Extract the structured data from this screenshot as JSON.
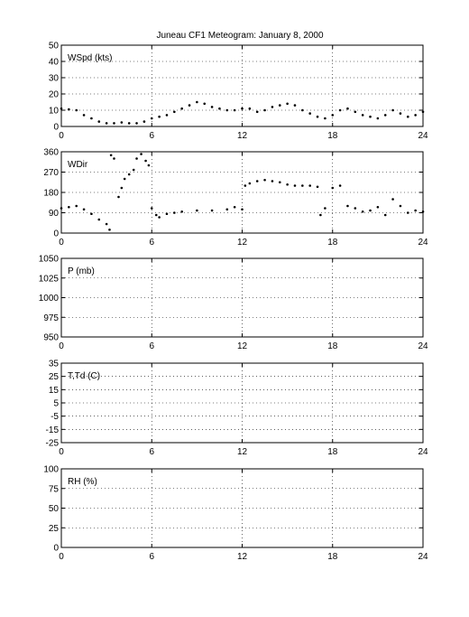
{
  "title": "Juneau  CF1 Meteogram:    January  8, 2000",
  "chart_data": [
    {
      "type": "scatter",
      "label": "WSpd (kts)",
      "xlim": [
        0,
        24
      ],
      "ylim": [
        0,
        50
      ],
      "xticks": [
        0,
        6,
        12,
        18,
        24
      ],
      "yticks": [
        0,
        10,
        20,
        30,
        40,
        50
      ],
      "grid": true,
      "series": [
        {
          "values": [
            [
              0.0,
              11
            ],
            [
              0.5,
              10.5
            ],
            [
              1.0,
              10
            ],
            [
              1.5,
              7
            ],
            [
              2.0,
              5
            ],
            [
              2.5,
              3
            ],
            [
              3.0,
              2
            ],
            [
              3.5,
              2
            ],
            [
              4.0,
              2.5
            ],
            [
              4.5,
              2
            ],
            [
              5.0,
              2
            ],
            [
              5.5,
              3
            ],
            [
              6.0,
              5
            ],
            [
              6.5,
              6
            ],
            [
              7.0,
              7
            ],
            [
              7.5,
              9
            ],
            [
              8.0,
              11
            ],
            [
              8.5,
              13
            ],
            [
              9.0,
              15
            ],
            [
              9.5,
              14
            ],
            [
              10.0,
              12
            ],
            [
              10.5,
              11
            ],
            [
              11.0,
              10
            ],
            [
              11.5,
              10
            ],
            [
              12.0,
              11
            ],
            [
              12.5,
              11
            ],
            [
              13.0,
              9
            ],
            [
              13.5,
              10
            ],
            [
              14.0,
              12
            ],
            [
              14.5,
              13
            ],
            [
              15.0,
              14
            ],
            [
              15.5,
              13
            ],
            [
              16.0,
              10
            ],
            [
              16.5,
              8
            ],
            [
              17.0,
              6
            ],
            [
              17.5,
              5
            ],
            [
              18.0,
              7
            ],
            [
              18.5,
              10
            ],
            [
              19.0,
              11
            ],
            [
              19.5,
              9
            ],
            [
              20.0,
              7
            ],
            [
              20.5,
              6
            ],
            [
              21.0,
              5
            ],
            [
              21.5,
              7
            ],
            [
              22.0,
              10
            ],
            [
              22.5,
              8
            ],
            [
              23.0,
              6
            ],
            [
              23.5,
              7
            ],
            [
              24.0,
              9
            ]
          ]
        }
      ]
    },
    {
      "type": "scatter",
      "label": "WDir",
      "xlim": [
        0,
        24
      ],
      "ylim": [
        0,
        360
      ],
      "xticks": [
        0,
        6,
        12,
        18,
        24
      ],
      "yticks": [
        0,
        90,
        180,
        270,
        360
      ],
      "grid": true,
      "series": [
        {
          "values": [
            [
              0.0,
              110
            ],
            [
              0.5,
              115
            ],
            [
              1.0,
              120
            ],
            [
              1.5,
              105
            ],
            [
              2.0,
              85
            ],
            [
              2.5,
              60
            ],
            [
              3.0,
              40
            ],
            [
              3.2,
              15
            ],
            [
              3.3,
              345
            ],
            [
              3.5,
              330
            ],
            [
              3.8,
              160
            ],
            [
              4.0,
              200
            ],
            [
              4.2,
              240
            ],
            [
              4.5,
              260
            ],
            [
              4.8,
              280
            ],
            [
              5.0,
              330
            ],
            [
              5.3,
              350
            ],
            [
              5.6,
              320
            ],
            [
              5.8,
              300
            ],
            [
              6.0,
              110
            ],
            [
              6.3,
              80
            ],
            [
              6.5,
              70
            ],
            [
              7.0,
              85
            ],
            [
              7.5,
              90
            ],
            [
              8.0,
              95
            ],
            [
              9.0,
              100
            ],
            [
              10.0,
              100
            ],
            [
              11.0,
              105
            ],
            [
              11.5,
              115
            ],
            [
              12.0,
              105
            ],
            [
              12.2,
              210
            ],
            [
              12.5,
              220
            ],
            [
              13.0,
              230
            ],
            [
              13.5,
              235
            ],
            [
              14.0,
              230
            ],
            [
              14.5,
              225
            ],
            [
              15.0,
              215
            ],
            [
              15.5,
              210
            ],
            [
              16.0,
              210
            ],
            [
              16.5,
              210
            ],
            [
              17.0,
              205
            ],
            [
              17.2,
              80
            ],
            [
              17.5,
              110
            ],
            [
              18.0,
              200
            ],
            [
              18.5,
              210
            ],
            [
              19.0,
              120
            ],
            [
              19.5,
              110
            ],
            [
              20.0,
              95
            ],
            [
              20.5,
              100
            ],
            [
              21.0,
              115
            ],
            [
              21.5,
              80
            ],
            [
              22.0,
              150
            ],
            [
              22.5,
              120
            ],
            [
              23.0,
              90
            ],
            [
              23.5,
              100
            ],
            [
              24.0,
              95
            ]
          ]
        }
      ]
    },
    {
      "type": "scatter",
      "label": "P (mb)",
      "xlim": [
        0,
        24
      ],
      "ylim": [
        950,
        1050
      ],
      "xticks": [
        0,
        6,
        12,
        18,
        24
      ],
      "yticks": [
        950,
        975,
        1000,
        1025,
        1050
      ],
      "grid": true,
      "series": []
    },
    {
      "type": "scatter",
      "label": "T,Td (C)",
      "xlim": [
        0,
        24
      ],
      "ylim": [
        -25,
        35
      ],
      "xticks": [
        0,
        6,
        12,
        18,
        24
      ],
      "yticks": [
        -25,
        -15,
        -5,
        5,
        15,
        25,
        35
      ],
      "grid": true,
      "series": []
    },
    {
      "type": "scatter",
      "label": "RH (%)",
      "xlim": [
        0,
        24
      ],
      "ylim": [
        0,
        100
      ],
      "xticks": [
        0,
        6,
        12,
        18,
        24
      ],
      "yticks": [
        0,
        25,
        50,
        75,
        100
      ],
      "grid": true,
      "series": []
    }
  ]
}
